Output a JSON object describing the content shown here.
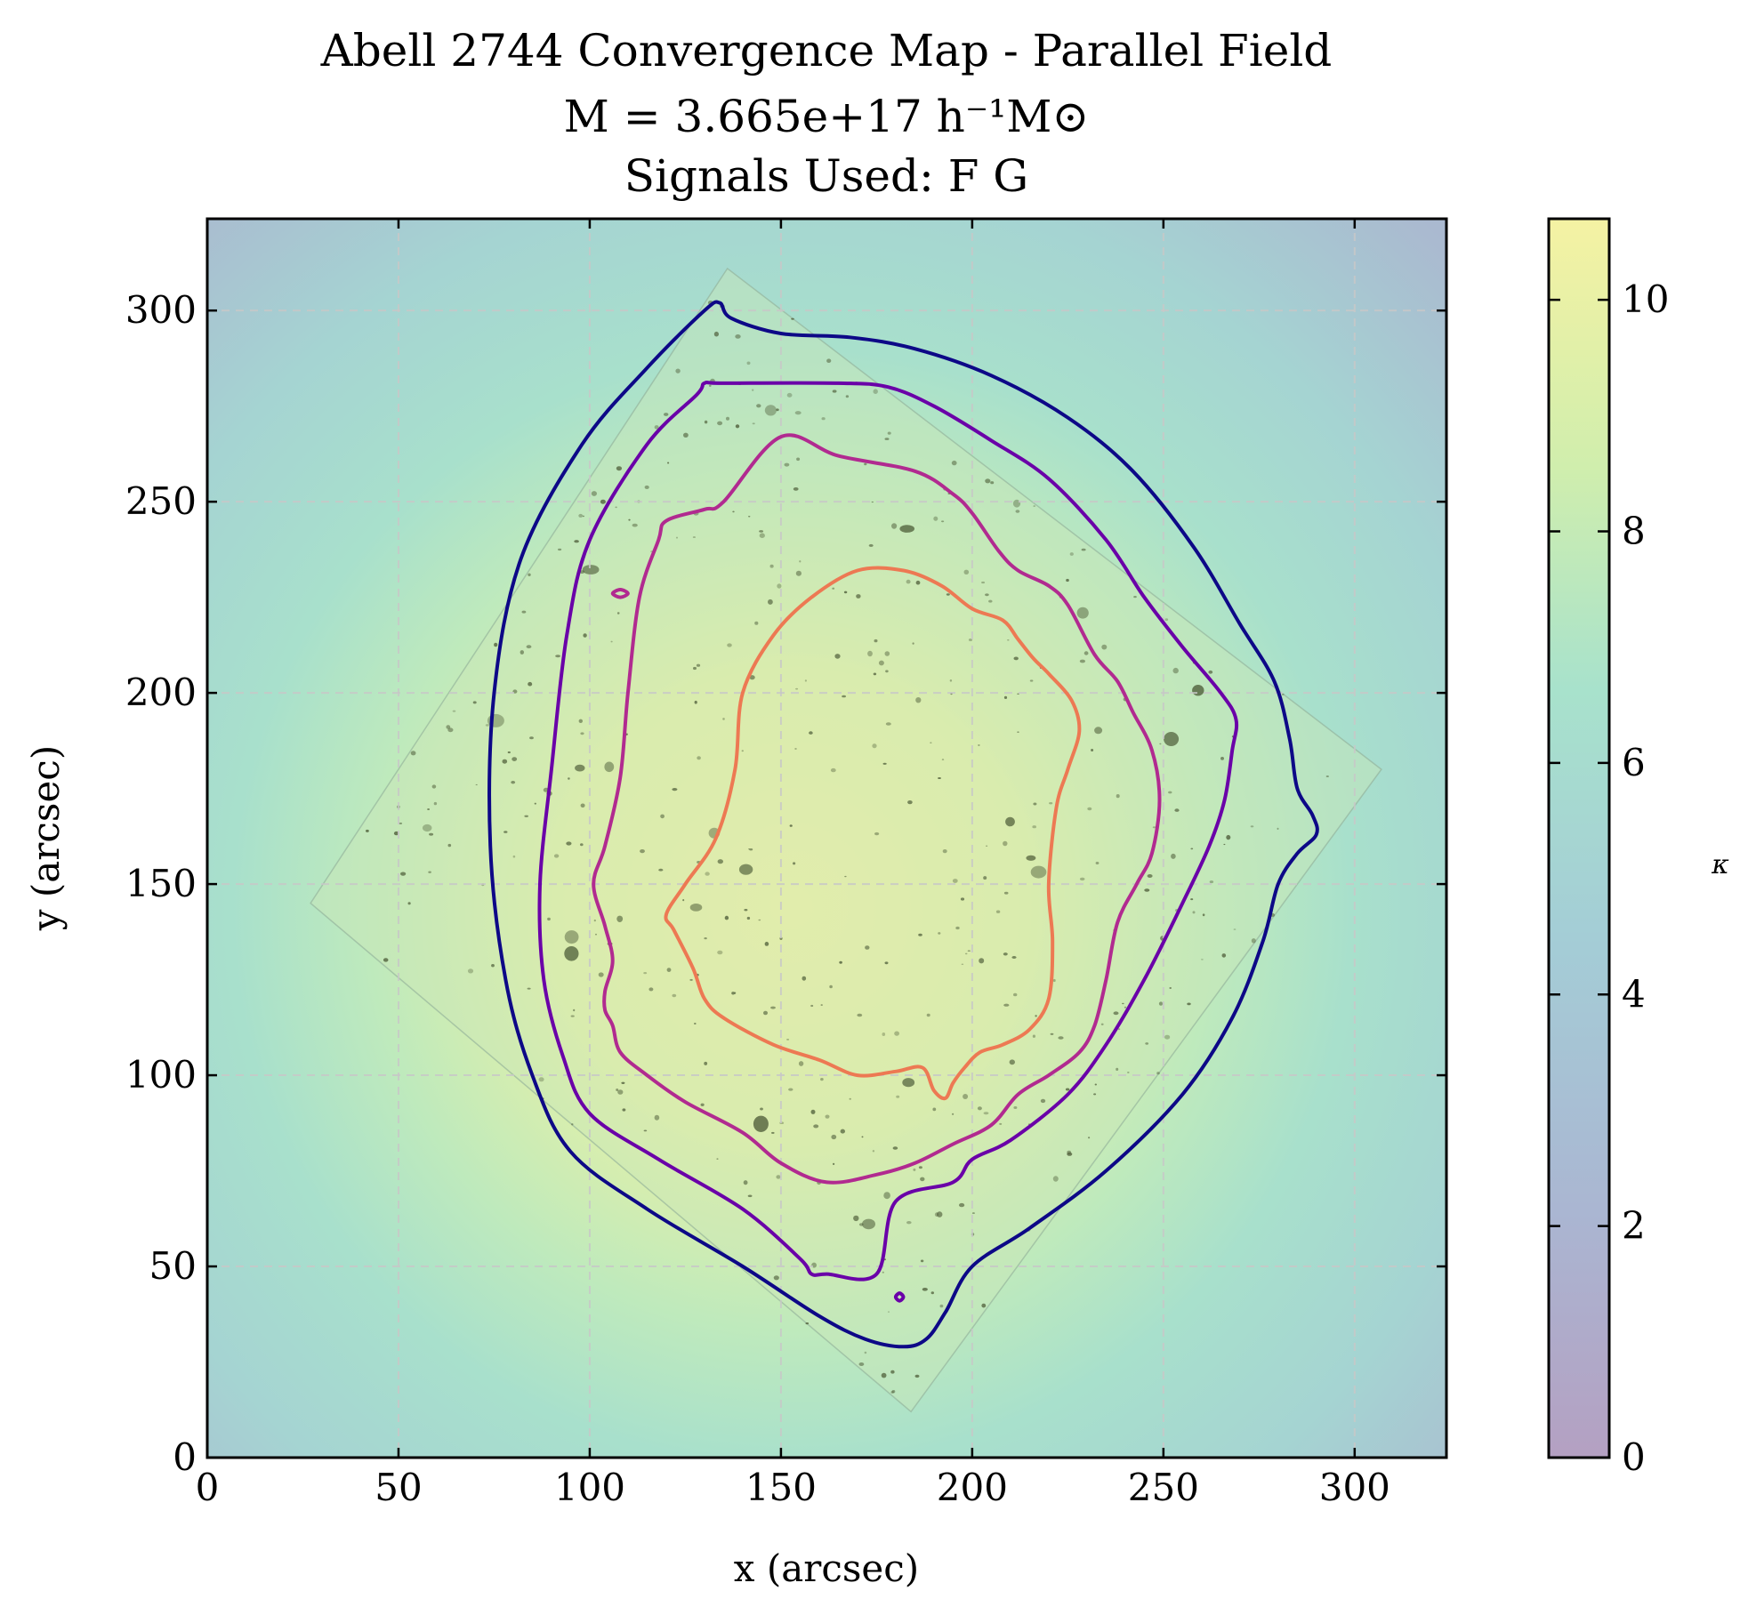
{
  "chart_data": {
    "type": "heatmap",
    "title_lines": [
      "Abell 2744 Convergence Map - Parallel Field",
      "M = 3.665e+17 h⁻¹M⊙",
      "Signals Used:  F G"
    ],
    "xlabel": "x (arcsec)",
    "ylabel": "y (arcsec)",
    "xlim": [
      0,
      324
    ],
    "ylim": [
      0,
      324
    ],
    "xticks": [
      0,
      50,
      100,
      150,
      200,
      250,
      300
    ],
    "yticks": [
      0,
      50,
      100,
      150,
      200,
      250,
      300
    ],
    "grid": true,
    "colormap": "viridis (alpha 0.4)",
    "colorbar": {
      "label": "κ",
      "range": [
        0,
        10.7
      ],
      "ticks": [
        0,
        2,
        4,
        6,
        8,
        10
      ],
      "colors": [
        "#b4a0c2",
        "#aab6d2",
        "#a4cdd6",
        "#a8e2cc",
        "#d0eead",
        "#f5f2a3"
      ]
    },
    "peak": {
      "x": 165,
      "y": 150,
      "kappa": 10.7
    },
    "hst_footprint": [
      [
        27,
        145
      ],
      [
        136,
        311
      ],
      [
        307,
        180
      ],
      [
        184,
        12
      ]
    ],
    "contours": [
      {
        "color": "#0d0887",
        "points": [
          [
            130,
            300
          ],
          [
            134,
            302
          ],
          [
            137,
            298
          ],
          [
            150,
            294
          ],
          [
            168,
            293
          ],
          [
            185,
            290
          ],
          [
            205,
            283
          ],
          [
            225,
            272
          ],
          [
            242,
            258
          ],
          [
            258,
            238
          ],
          [
            270,
            218
          ],
          [
            279,
            203
          ],
          [
            283,
            188
          ],
          [
            285,
            175
          ],
          [
            289,
            168
          ],
          [
            290,
            163
          ],
          [
            285,
            158
          ],
          [
            280,
            150
          ],
          [
            276,
            135
          ],
          [
            268,
            115
          ],
          [
            255,
            95
          ],
          [
            235,
            75
          ],
          [
            215,
            60
          ],
          [
            200,
            50
          ],
          [
            193,
            38
          ],
          [
            188,
            31
          ],
          [
            182,
            29
          ],
          [
            172,
            31
          ],
          [
            160,
            37
          ],
          [
            140,
            50
          ],
          [
            115,
            65
          ],
          [
            95,
            80
          ],
          [
            85,
            100
          ],
          [
            78,
            125
          ],
          [
            74,
            160
          ],
          [
            75,
            200
          ],
          [
            82,
            235
          ],
          [
            98,
            265
          ],
          [
            115,
            285
          ],
          [
            130,
            300
          ]
        ],
        "closed": true
      },
      {
        "color": "#6a00a8",
        "points": [
          [
            130,
            281
          ],
          [
            135,
            281
          ],
          [
            165,
            281
          ],
          [
            178,
            280
          ],
          [
            190,
            275
          ],
          [
            205,
            266
          ],
          [
            220,
            256
          ],
          [
            235,
            240
          ],
          [
            245,
            225
          ],
          [
            255,
            212
          ],
          [
            265,
            200
          ],
          [
            269,
            193
          ],
          [
            268,
            185
          ],
          [
            266,
            172
          ],
          [
            262,
            160
          ],
          [
            255,
            145
          ],
          [
            245,
            125
          ],
          [
            235,
            108
          ],
          [
            225,
            95
          ],
          [
            210,
            83
          ],
          [
            200,
            78
          ],
          [
            195,
            72
          ],
          [
            180,
            67
          ],
          [
            175,
            48
          ],
          [
            162,
            48
          ],
          [
            158,
            48
          ],
          [
            155,
            52
          ],
          [
            140,
            65
          ],
          [
            118,
            78
          ],
          [
            100,
            90
          ],
          [
            93,
            105
          ],
          [
            88,
            125
          ],
          [
            87,
            150
          ],
          [
            90,
            180
          ],
          [
            94,
            215
          ],
          [
            100,
            240
          ],
          [
            115,
            265
          ],
          [
            128,
            278
          ],
          [
            130,
            281
          ]
        ],
        "closed": true
      },
      {
        "color": "#6a00a8",
        "points": [
          [
            181,
            41
          ],
          [
            182,
            42
          ],
          [
            181,
            43
          ],
          [
            180,
            42
          ],
          [
            181,
            41
          ]
        ],
        "closed": true
      },
      {
        "color": "#b12a90",
        "points": [
          [
            150,
            267
          ],
          [
            165,
            262
          ],
          [
            185,
            258
          ],
          [
            195,
            252
          ],
          [
            200,
            247
          ],
          [
            207,
            237
          ],
          [
            212,
            232
          ],
          [
            220,
            228
          ],
          [
            225,
            223
          ],
          [
            232,
            210
          ],
          [
            238,
            203
          ],
          [
            242,
            195
          ],
          [
            247,
            185
          ],
          [
            249,
            172
          ],
          [
            247,
            158
          ],
          [
            243,
            150
          ],
          [
            238,
            140
          ],
          [
            235,
            125
          ],
          [
            232,
            113
          ],
          [
            228,
            106
          ],
          [
            220,
            100
          ],
          [
            212,
            95
          ],
          [
            205,
            87
          ],
          [
            195,
            82
          ],
          [
            185,
            77
          ],
          [
            175,
            74
          ],
          [
            162,
            72
          ],
          [
            150,
            77
          ],
          [
            140,
            85
          ],
          [
            125,
            93
          ],
          [
            115,
            100
          ],
          [
            108,
            106
          ],
          [
            106,
            113
          ],
          [
            104,
            117
          ],
          [
            104,
            122
          ],
          [
            106,
            130
          ],
          [
            104,
            139
          ],
          [
            101,
            150
          ],
          [
            104,
            160
          ],
          [
            108,
            178
          ],
          [
            110,
            200
          ],
          [
            113,
            225
          ],
          [
            118,
            240
          ],
          [
            120,
            245
          ],
          [
            130,
            248
          ],
          [
            135,
            250
          ],
          [
            150,
            267
          ]
        ],
        "closed": true
      },
      {
        "color": "#b12a90",
        "points": [
          [
            106,
            226
          ],
          [
            108,
            227
          ],
          [
            110,
            226
          ],
          [
            108,
            225
          ],
          [
            106,
            226
          ]
        ],
        "closed": true
      },
      {
        "color": "#ed7953",
        "points": [
          [
            158,
            225
          ],
          [
            170,
            232
          ],
          [
            182,
            232
          ],
          [
            192,
            228
          ],
          [
            200,
            222
          ],
          [
            208,
            219
          ],
          [
            212,
            214
          ],
          [
            216,
            209
          ],
          [
            220,
            205
          ],
          [
            226,
            198
          ],
          [
            228,
            190
          ],
          [
            225,
            180
          ],
          [
            222,
            170
          ],
          [
            220,
            150
          ],
          [
            221,
            135
          ],
          [
            220,
            120
          ],
          [
            215,
            112
          ],
          [
            208,
            108
          ],
          [
            202,
            106
          ],
          [
            198,
            102
          ],
          [
            195,
            98
          ],
          [
            193,
            94
          ],
          [
            190,
            96
          ],
          [
            187,
            102
          ],
          [
            180,
            101
          ],
          [
            170,
            100
          ],
          [
            160,
            104
          ],
          [
            148,
            108
          ],
          [
            135,
            115
          ],
          [
            130,
            120
          ],
          [
            127,
            128
          ],
          [
            122,
            138
          ],
          [
            120,
            142
          ],
          [
            125,
            150
          ],
          [
            133,
            162
          ],
          [
            138,
            180
          ],
          [
            140,
            200
          ],
          [
            148,
            215
          ],
          [
            158,
            225
          ]
        ],
        "closed": true
      }
    ]
  }
}
